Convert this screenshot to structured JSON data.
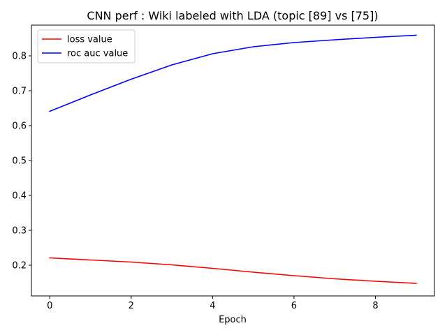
{
  "chart_data": {
    "type": "line",
    "title": "CNN perf : Wiki labeled with LDA (topic [89] vs [75])",
    "xlabel": "Epoch",
    "ylabel": "",
    "xlim": [
      -0.45,
      9.45
    ],
    "ylim": [
      0.112,
      0.888
    ],
    "x_ticks": [
      0,
      2,
      4,
      6,
      8
    ],
    "y_ticks": [
      0.2,
      0.3,
      0.4,
      0.5,
      0.6,
      0.7,
      0.8
    ],
    "x": [
      0,
      1,
      2,
      3,
      4,
      5,
      6,
      7,
      8,
      9
    ],
    "grid": false,
    "legend_position": "top-left",
    "series": [
      {
        "name": "loss value",
        "color": "#ff0000",
        "values": [
          0.221,
          0.215,
          0.209,
          0.201,
          0.191,
          0.18,
          0.17,
          0.161,
          0.154,
          0.148
        ]
      },
      {
        "name": "roc auc value",
        "color": "#0000ff",
        "values": [
          0.641,
          0.688,
          0.733,
          0.774,
          0.806,
          0.826,
          0.838,
          0.846,
          0.853,
          0.859
        ]
      }
    ]
  }
}
